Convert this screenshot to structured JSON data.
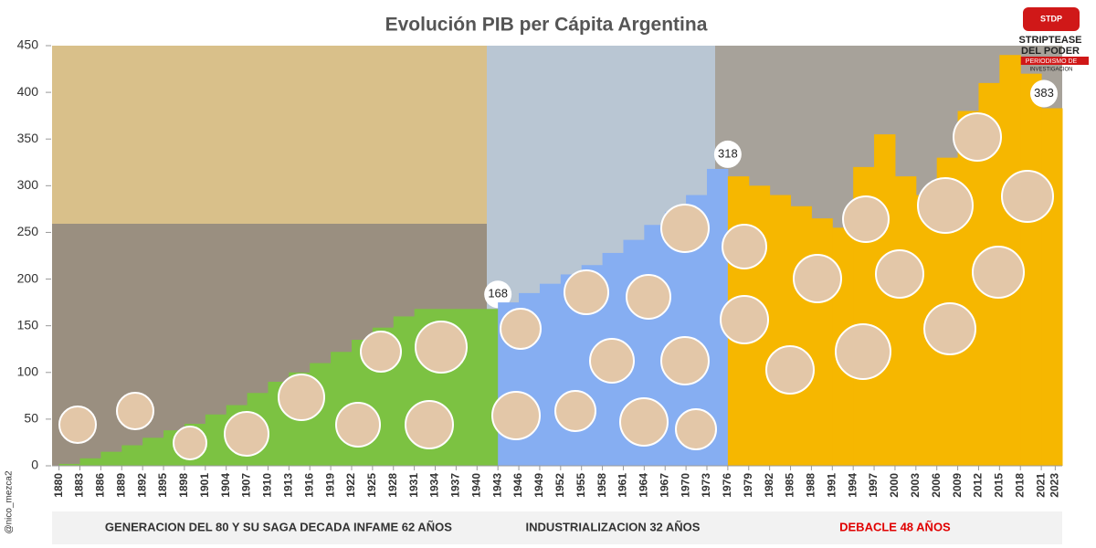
{
  "chart_data": {
    "type": "step-area",
    "title": "Evolución PIB per Cápita Argentina",
    "xlim": [
      1879,
      2024
    ],
    "ylim": [
      0,
      450
    ],
    "yticks": [
      0,
      50,
      100,
      150,
      200,
      250,
      300,
      350,
      400,
      450
    ],
    "xticks": [
      1880,
      1883,
      1886,
      1889,
      1892,
      1895,
      1898,
      1901,
      1904,
      1907,
      1910,
      1913,
      1916,
      1919,
      1922,
      1925,
      1928,
      1931,
      1934,
      1937,
      1940,
      1943,
      1946,
      1949,
      1952,
      1955,
      1958,
      1961,
      1964,
      1967,
      1970,
      1973,
      1976,
      1979,
      1982,
      1985,
      1988,
      1991,
      1994,
      1997,
      2000,
      2003,
      2006,
      2009,
      2012,
      2015,
      2018,
      2021,
      2023
    ],
    "grid": false,
    "series": [
      {
        "name": "GENERACION DEL 80 Y SU SAGA DECADA INFAME 62 AÑOS",
        "color": "#7cc242",
        "label_color": "#333333",
        "x": [
          1880,
          1883,
          1886,
          1889,
          1892,
          1895,
          1898,
          1901,
          1904,
          1907,
          1910,
          1913,
          1916,
          1919,
          1922,
          1925,
          1928,
          1931,
          1934,
          1937,
          1940
        ],
        "values": [
          2,
          8,
          15,
          22,
          30,
          38,
          45,
          55,
          65,
          78,
          90,
          100,
          110,
          122,
          135,
          148,
          160,
          168,
          168,
          168,
          168
        ]
      },
      {
        "name": "INDUSTRIALIZACION  32 AÑOS",
        "color": "#86aef2",
        "label_color": "#333333",
        "x": [
          1943,
          1946,
          1949,
          1952,
          1955,
          1958,
          1961,
          1964,
          1967,
          1970,
          1973
        ],
        "values": [
          175,
          185,
          195,
          205,
          215,
          228,
          242,
          258,
          272,
          290,
          318
        ]
      },
      {
        "name": "DEBACLE  48 AÑOS",
        "color": "#f6b700",
        "label_color": "#e00000",
        "x": [
          1976,
          1979,
          1982,
          1985,
          1988,
          1991,
          1994,
          1997,
          2000,
          2003,
          2006,
          2009,
          2012,
          2015,
          2018,
          2021
        ],
        "values": [
          310,
          300,
          290,
          278,
          265,
          255,
          320,
          355,
          310,
          290,
          330,
          380,
          410,
          440,
          420,
          383
        ]
      }
    ],
    "logo": {
      "badge": "STDP",
      "line1": "STRIPTEASE",
      "line2": "DEL PODER",
      "line3": "PERIODISMO DE",
      "line4": "INVESTIGACION"
    },
    "watermark": "@nico_mezca2"
  }
}
